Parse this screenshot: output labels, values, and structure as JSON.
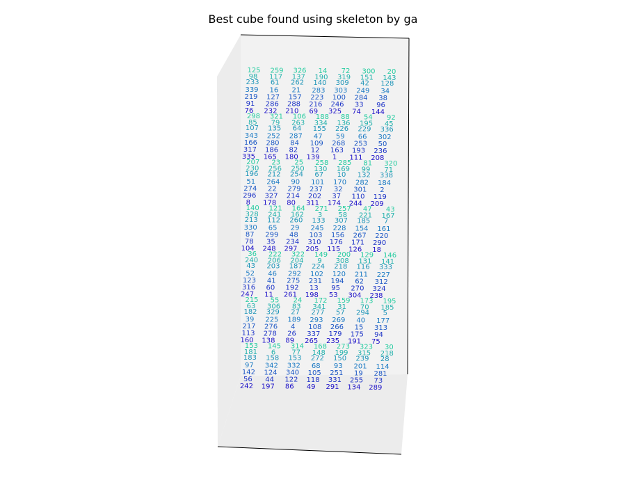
{
  "chart_data": {
    "type": "scatter",
    "title": "Best cube found using skeleton by ga",
    "projection": "3d",
    "grid": false,
    "axes_visible": false,
    "colors": {
      "pane": "#f2f2f2",
      "pane_side": "#ececec",
      "edge": "#000000",
      "near": "#1c10c8",
      "mid": "#1b7ac4",
      "far": "#25cca0"
    },
    "label_layers": [
      {
        "name": "layer-1",
        "rows": [
          [
            "125",
            "259",
            "326",
            "14",
            "72",
            "300",
            "20"
          ],
          [
            "298",
            "321",
            "106",
            "188",
            "88",
            "54",
            "92"
          ],
          [
            "207",
            "23",
            "25",
            "258",
            "285",
            "81",
            "320"
          ],
          [
            "140",
            "121",
            "164",
            "271",
            "257",
            "47",
            "43"
          ],
          [
            "36",
            "222",
            "322",
            "149",
            "200",
            "129",
            "146"
          ],
          [
            "215",
            "55",
            "24",
            "172",
            "159",
            "173",
            "195"
          ],
          [
            "153",
            "145",
            "314",
            "168",
            "273",
            "323",
            "30"
          ]
        ]
      },
      {
        "name": "layer-2",
        "rows": [
          [
            "98",
            "117",
            "137",
            "190",
            "319",
            "151",
            "143"
          ],
          [
            "85",
            "79",
            "263",
            "334",
            "136",
            "195",
            "45"
          ],
          [
            "230",
            "256",
            "250",
            "130",
            "169",
            "99",
            "71"
          ],
          [
            "328",
            "241",
            "162",
            "3",
            "58",
            "221",
            "167"
          ],
          [
            "240",
            "206",
            "204",
            "9",
            "308",
            "131",
            "141"
          ],
          [
            "63",
            "306",
            "83",
            "341",
            "31",
            "70",
            "185"
          ],
          [
            "181",
            "6",
            "77",
            "148",
            "199",
            "315",
            "218"
          ]
        ]
      },
      {
        "name": "layer-3",
        "rows": [
          [
            "233",
            "61",
            "262",
            "140",
            "309",
            "42",
            "128"
          ],
          [
            "107",
            "135",
            "64",
            "155",
            "226",
            "229",
            "336"
          ],
          [
            "196",
            "212",
            "254",
            "67",
            "10",
            "132",
            "338"
          ],
          [
            "213",
            "112",
            "260",
            "133",
            "307",
            "185",
            "7"
          ],
          [
            "43",
            "203",
            "187",
            "224",
            "218",
            "116",
            "333"
          ],
          [
            "182",
            "329",
            "27",
            "277",
            "57",
            "294",
            "5"
          ],
          [
            "183",
            "158",
            "153",
            "272",
            "150",
            "239",
            "28"
          ]
        ]
      },
      {
        "name": "layer-4",
        "rows": [
          [
            "339",
            "16",
            "21",
            "283",
            "303",
            "249",
            "34"
          ],
          [
            "343",
            "252",
            "287",
            "47",
            "59",
            "66",
            "302"
          ],
          [
            "51",
            "264",
            "90",
            "101",
            "170",
            "282",
            "184"
          ],
          [
            "330",
            "65",
            "29",
            "245",
            "228",
            "154",
            "161"
          ],
          [
            "52",
            "46",
            "292",
            "102",
            "120",
            "211",
            "227"
          ],
          [
            "39",
            "225",
            "189",
            "293",
            "269",
            "40",
            "177"
          ],
          [
            "97",
            "342",
            "332",
            "68",
            "93",
            "201",
            "114"
          ]
        ]
      },
      {
        "name": "layer-5",
        "rows": [
          [
            "219",
            "127",
            "157",
            "223",
            "100",
            "284",
            "38"
          ],
          [
            "166",
            "280",
            "84",
            "109",
            "268",
            "253",
            "50"
          ],
          [
            "274",
            "22",
            "279",
            "237",
            "32",
            "301",
            "2"
          ],
          [
            "87",
            "299",
            "48",
            "103",
            "156",
            "267",
            "220"
          ],
          [
            "123",
            "41",
            "275",
            "231",
            "194",
            "62",
            "312"
          ],
          [
            "217",
            "276",
            "4",
            "108",
            "266",
            "15",
            "313"
          ],
          [
            "142",
            "124",
            "340",
            "105",
            "251",
            "19",
            "281"
          ]
        ]
      },
      {
        "name": "layer-6",
        "rows": [
          [
            "91",
            "286",
            "288",
            "216",
            "246",
            "33",
            "96"
          ],
          [
            "317",
            "186",
            "82",
            "12",
            "163",
            "193",
            "236"
          ],
          [
            "296",
            "327",
            "214",
            "202",
            "37",
            "110",
            "119"
          ],
          [
            "78",
            "35",
            "234",
            "310",
            "176",
            "171",
            "290"
          ],
          [
            "316",
            "60",
            "192",
            "13",
            "95",
            "270",
            "324"
          ],
          [
            "113",
            "278",
            "26",
            "337",
            "179",
            "175",
            "94"
          ],
          [
            "56",
            "44",
            "122",
            "118",
            "331",
            "255",
            "73"
          ]
        ]
      },
      {
        "name": "layer-7",
        "rows": [
          [
            "76",
            "232",
            "210",
            "69",
            "325",
            "74",
            "144"
          ],
          [
            "335",
            "165",
            "180",
            "139",
            "1",
            "111",
            "208"
          ],
          [
            "8",
            "178",
            "80",
            "311",
            "174",
            "244",
            "209"
          ],
          [
            "104",
            "248",
            "297",
            "205",
            "115",
            "126",
            "18"
          ],
          [
            "247",
            "11",
            "261",
            "198",
            "53",
            "304",
            "238"
          ],
          [
            "160",
            "138",
            "89",
            "265",
            "235",
            "191",
            "75"
          ],
          [
            "242",
            "197",
            "86",
            "49",
            "291",
            "134",
            "289"
          ]
        ]
      }
    ]
  }
}
